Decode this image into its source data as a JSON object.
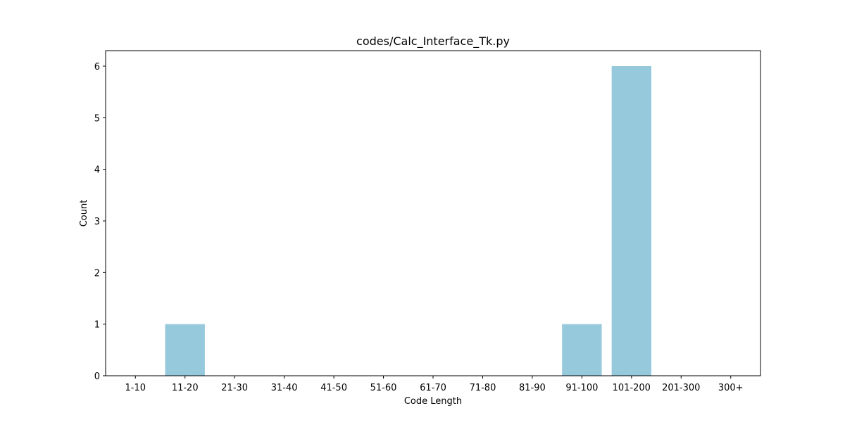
{
  "chart_data": {
    "type": "bar",
    "title": "codes/Calc_Interface_Tk.py",
    "xlabel": "Code Length",
    "ylabel": "Count",
    "categories": [
      "1-10",
      "11-20",
      "21-30",
      "31-40",
      "41-50",
      "51-60",
      "61-70",
      "71-80",
      "81-90",
      "91-100",
      "101-200",
      "201-300",
      "300+"
    ],
    "values": [
      0,
      1,
      0,
      0,
      0,
      0,
      0,
      0,
      0,
      1,
      6,
      0,
      0
    ],
    "ylim": [
      0,
      6.3
    ],
    "yticks": [
      0,
      1,
      2,
      3,
      4,
      5,
      6
    ],
    "bar_color": "#96c9dc",
    "grid": false,
    "legend": "none"
  }
}
